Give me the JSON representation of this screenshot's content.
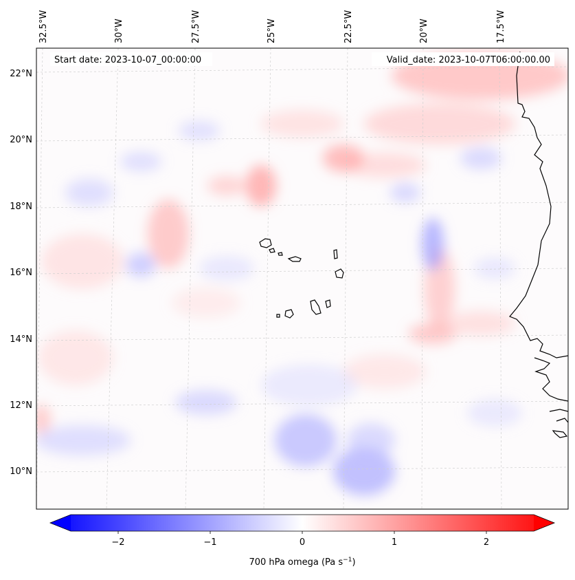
{
  "map": {
    "lon_labels": [
      "32.5°W",
      "30°W",
      "27.5°W",
      "25°W",
      "22.5°W",
      "20°W",
      "17.5°W"
    ],
    "lat_labels": [
      "22°N",
      "20°N",
      "18°N",
      "16°N",
      "14°N",
      "12°N",
      "10°N"
    ],
    "start_date_label": "Start date: 2023-10-07_00:00:00",
    "valid_date_label": "Valid_date: 2023-10-07T06:00:00.00"
  },
  "colorbar": {
    "tick_labels": [
      "−2",
      "−1",
      "0",
      "1",
      "2"
    ],
    "label_prefix": "700 hPa omega (Pa s",
    "label_exponent": "−1",
    "label_suffix": ")",
    "colormap": "bwr",
    "vmin": -2.5,
    "vmax": 2.5,
    "extend": "both"
  },
  "colors": {
    "blue_end": "#0000ff",
    "red_end": "#ff0000",
    "coastline": "#000000",
    "gridline": "#cfcfcf"
  }
}
